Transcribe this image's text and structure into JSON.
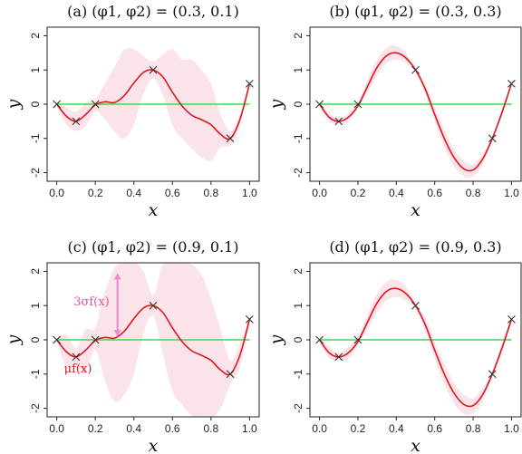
{
  "colors": {
    "mean": "#e2161c",
    "band": "#fbe3ea",
    "zero_line": "#3ddc3d",
    "marker": "#333333",
    "arrow": "#ee88cc",
    "annotation_mean": "#e2161c",
    "annotation_sigma": "#dd55aa"
  },
  "chart_data": [
    {
      "type": "line",
      "panel_label": "(a)",
      "title": "(φ1, φ2) = (0.3, 0.1)",
      "xlabel": "x",
      "ylabel": "y",
      "xlim": [
        -0.05,
        1.05
      ],
      "ylim": [
        -2.25,
        2.25
      ],
      "xticks": [
        "0.0",
        "0.2",
        "0.4",
        "0.6",
        "0.8",
        "1.0"
      ],
      "yticks": [
        "-2",
        "-1",
        "0",
        "1",
        "2"
      ],
      "x": [
        0.0,
        0.05,
        0.1,
        0.15,
        0.2,
        0.25,
        0.3,
        0.35,
        0.4,
        0.45,
        0.5,
        0.55,
        0.6,
        0.65,
        0.7,
        0.75,
        0.8,
        0.85,
        0.9,
        0.95,
        1.0
      ],
      "series": [
        {
          "role": "mean",
          "values": [
            0.0,
            -0.35,
            -0.5,
            -0.3,
            -0.02,
            0.07,
            0.05,
            0.25,
            0.62,
            0.93,
            1.0,
            0.8,
            0.35,
            -0.05,
            -0.32,
            -0.45,
            -0.6,
            -0.88,
            -1.0,
            -0.45,
            0.6
          ]
        },
        {
          "role": "band_upper",
          "values": [
            0.08,
            -0.1,
            -0.22,
            0.05,
            0.15,
            0.6,
            1.1,
            1.6,
            1.6,
            1.4,
            1.25,
            1.45,
            1.6,
            1.3,
            1.3,
            1.0,
            0.6,
            -0.3,
            -0.8,
            -0.3,
            0.65
          ]
        },
        {
          "role": "band_lower",
          "values": [
            -0.08,
            -0.6,
            -0.78,
            -0.65,
            -0.2,
            -0.45,
            -0.8,
            -1.0,
            -0.6,
            0.3,
            0.75,
            0.25,
            -0.6,
            -1.0,
            -1.3,
            -1.55,
            -1.65,
            -1.25,
            -1.2,
            -0.6,
            0.55
          ]
        },
        {
          "role": "zero",
          "values": [
            0,
            0,
            0,
            0,
            0,
            0,
            0,
            0,
            0,
            0,
            0,
            0,
            0,
            0,
            0,
            0,
            0,
            0,
            0,
            0,
            0
          ]
        }
      ],
      "observations": {
        "x": [
          0.0,
          0.1,
          0.2,
          0.5,
          0.9,
          1.0
        ],
        "y": [
          0.0,
          -0.5,
          0.0,
          1.0,
          -1.0,
          0.6
        ]
      },
      "annotations": []
    },
    {
      "type": "line",
      "panel_label": "(b)",
      "title": "(φ1, φ2) = (0.3, 0.3)",
      "xlabel": "x",
      "ylabel": "y",
      "xlim": [
        -0.05,
        1.05
      ],
      "ylim": [
        -2.25,
        2.25
      ],
      "xticks": [
        "0.0",
        "0.2",
        "0.4",
        "0.6",
        "0.8",
        "1.0"
      ],
      "yticks": [
        "-2",
        "-1",
        "0",
        "1",
        "2"
      ],
      "x": [
        0.0,
        0.05,
        0.1,
        0.15,
        0.2,
        0.25,
        0.3,
        0.35,
        0.4,
        0.45,
        0.5,
        0.55,
        0.6,
        0.65,
        0.7,
        0.75,
        0.8,
        0.85,
        0.9,
        0.95,
        1.0
      ],
      "series": [
        {
          "role": "mean",
          "values": [
            0.0,
            -0.38,
            -0.5,
            -0.38,
            -0.05,
            0.52,
            1.08,
            1.42,
            1.5,
            1.35,
            1.0,
            0.45,
            -0.3,
            -1.0,
            -1.55,
            -1.88,
            -1.92,
            -1.6,
            -1.0,
            -0.25,
            0.6
          ]
        },
        {
          "role": "band_upper",
          "values": [
            0.05,
            -0.25,
            -0.45,
            -0.25,
            0.05,
            0.7,
            1.3,
            1.65,
            1.7,
            1.5,
            1.05,
            0.6,
            -0.1,
            -0.75,
            -1.3,
            -1.65,
            -1.75,
            -1.45,
            -0.95,
            -0.15,
            0.65
          ]
        },
        {
          "role": "band_lower",
          "values": [
            -0.05,
            -0.5,
            -0.55,
            -0.5,
            -0.1,
            0.35,
            0.85,
            1.2,
            1.3,
            1.2,
            0.95,
            0.3,
            -0.5,
            -1.25,
            -1.8,
            -2.1,
            -2.1,
            -1.75,
            -1.05,
            -0.35,
            0.55
          ]
        },
        {
          "role": "zero",
          "values": [
            0,
            0,
            0,
            0,
            0,
            0,
            0,
            0,
            0,
            0,
            0,
            0,
            0,
            0,
            0,
            0,
            0,
            0,
            0,
            0,
            0
          ]
        }
      ],
      "observations": {
        "x": [
          0.0,
          0.1,
          0.2,
          0.5,
          0.9,
          1.0
        ],
        "y": [
          0.0,
          -0.5,
          0.0,
          1.0,
          -1.0,
          0.6
        ]
      },
      "annotations": []
    },
    {
      "type": "line",
      "panel_label": "(c)",
      "title": "(φ1, φ2) = (0.9, 0.1)",
      "xlabel": "x",
      "ylabel": "y",
      "xlim": [
        -0.05,
        1.05
      ],
      "ylim": [
        -2.25,
        2.25
      ],
      "xticks": [
        "0.0",
        "0.2",
        "0.4",
        "0.6",
        "0.8",
        "1.0"
      ],
      "yticks": [
        "-2",
        "-1",
        "0",
        "1",
        "2"
      ],
      "x": [
        0.0,
        0.05,
        0.1,
        0.15,
        0.2,
        0.25,
        0.3,
        0.35,
        0.4,
        0.45,
        0.5,
        0.55,
        0.6,
        0.65,
        0.7,
        0.75,
        0.8,
        0.85,
        0.9,
        0.95,
        1.0
      ],
      "series": [
        {
          "role": "mean",
          "values": [
            0.0,
            -0.35,
            -0.5,
            -0.3,
            -0.02,
            0.07,
            0.05,
            0.25,
            0.62,
            0.93,
            1.0,
            0.8,
            0.35,
            -0.05,
            -0.32,
            -0.45,
            -0.6,
            -0.88,
            -1.0,
            -0.45,
            0.6
          ]
        },
        {
          "role": "band_upper",
          "values": [
            0.05,
            0.15,
            -0.25,
            0.3,
            0.35,
            1.4,
            2.1,
            2.3,
            2.3,
            2.0,
            1.3,
            2.2,
            2.3,
            2.3,
            2.2,
            1.9,
            1.2,
            0.3,
            -0.6,
            -0.1,
            0.65
          ]
        },
        {
          "role": "band_lower",
          "values": [
            -0.05,
            -0.8,
            -0.75,
            -0.9,
            -0.3,
            -1.2,
            -1.8,
            -1.6,
            -1.0,
            0.2,
            0.7,
            -0.4,
            -1.5,
            -1.9,
            -2.2,
            -2.3,
            -2.3,
            -2.0,
            -1.3,
            -0.8,
            0.5
          ]
        },
        {
          "role": "zero",
          "values": [
            0,
            0,
            0,
            0,
            0,
            0,
            0,
            0,
            0,
            0,
            0,
            0,
            0,
            0,
            0,
            0,
            0,
            0,
            0,
            0,
            0
          ]
        }
      ],
      "observations": {
        "x": [
          0.0,
          0.1,
          0.2,
          0.5,
          0.9,
          1.0
        ],
        "y": [
          0.0,
          -0.5,
          0.0,
          1.0,
          -1.0,
          0.6
        ]
      },
      "annotations": [
        {
          "text": "3σf(x)",
          "role": "sigma_label",
          "x": 0.18,
          "y": 1.0
        },
        {
          "text": "μf(x)",
          "role": "mean_label",
          "x": 0.11,
          "y": -0.95
        },
        {
          "role": "arrow",
          "x": 0.315,
          "y_from": 0.1,
          "y_to": 1.95
        }
      ]
    },
    {
      "type": "line",
      "panel_label": "(d)",
      "title": "(φ1, φ2) = (0.9, 0.3)",
      "xlabel": "x",
      "ylabel": "y",
      "xlim": [
        -0.05,
        1.05
      ],
      "ylim": [
        -2.25,
        2.25
      ],
      "xticks": [
        "0.0",
        "0.2",
        "0.4",
        "0.6",
        "0.8",
        "1.0"
      ],
      "yticks": [
        "-2",
        "-1",
        "0",
        "1",
        "2"
      ],
      "x": [
        0.0,
        0.05,
        0.1,
        0.15,
        0.2,
        0.25,
        0.3,
        0.35,
        0.4,
        0.45,
        0.5,
        0.55,
        0.6,
        0.65,
        0.7,
        0.75,
        0.8,
        0.85,
        0.9,
        0.95,
        1.0
      ],
      "series": [
        {
          "role": "mean",
          "values": [
            0.0,
            -0.38,
            -0.5,
            -0.38,
            -0.05,
            0.52,
            1.08,
            1.42,
            1.5,
            1.35,
            1.0,
            0.45,
            -0.3,
            -1.0,
            -1.55,
            -1.88,
            -1.92,
            -1.6,
            -1.0,
            -0.25,
            0.6
          ]
        },
        {
          "role": "band_upper",
          "values": [
            0.05,
            -0.2,
            -0.4,
            -0.2,
            0.1,
            0.75,
            1.35,
            1.7,
            1.75,
            1.55,
            1.05,
            0.65,
            -0.05,
            -0.7,
            -1.25,
            -1.6,
            -1.7,
            -1.4,
            -0.95,
            -0.1,
            0.65
          ]
        },
        {
          "role": "band_lower",
          "values": [
            -0.05,
            -0.55,
            -0.6,
            -0.55,
            -0.15,
            0.3,
            0.8,
            1.15,
            1.25,
            1.15,
            0.95,
            0.25,
            -0.55,
            -1.3,
            -1.85,
            -2.15,
            -2.15,
            -1.8,
            -1.05,
            -0.4,
            0.55
          ]
        },
        {
          "role": "zero",
          "values": [
            0,
            0,
            0,
            0,
            0,
            0,
            0,
            0,
            0,
            0,
            0,
            0,
            0,
            0,
            0,
            0,
            0,
            0,
            0,
            0,
            0
          ]
        }
      ],
      "observations": {
        "x": [
          0.0,
          0.1,
          0.2,
          0.5,
          0.9,
          1.0
        ],
        "y": [
          0.0,
          -0.5,
          0.0,
          1.0,
          -1.0,
          0.6
        ]
      },
      "annotations": []
    }
  ]
}
